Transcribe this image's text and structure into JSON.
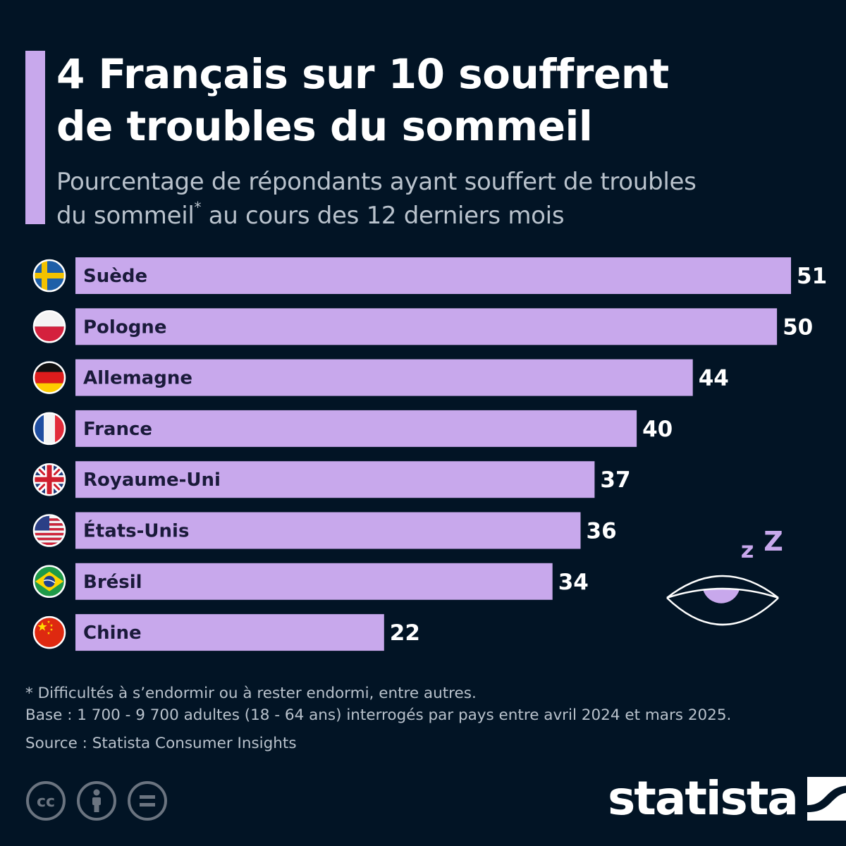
{
  "header": {
    "title_line1": "4 Français sur 10 souffrent",
    "title_line2": "de troubles du sommeil",
    "subtitle_line1": "Pourcentage de répondants ayant souffert de troubles",
    "subtitle_line2a": "du sommeil",
    "subtitle_mark": "*",
    "subtitle_line2b": " au cours des 12 derniers mois"
  },
  "chart_data": {
    "type": "bar",
    "orientation": "horizontal",
    "categories": [
      "Suède",
      "Pologne",
      "Allemagne",
      "France",
      "Royaume-Uni",
      "États-Unis",
      "Brésil",
      "Chine"
    ],
    "values": [
      51,
      50,
      44,
      40,
      37,
      36,
      34,
      22
    ],
    "flags": [
      "sweden-flag-icon",
      "poland-flag-icon",
      "germany-flag-icon",
      "france-flag-icon",
      "uk-flag-icon",
      "usa-flag-icon",
      "brazil-flag-icon",
      "china-flag-icon"
    ],
    "xlim": [
      0,
      51
    ],
    "bar_color": "#c8a8ec",
    "data_labels": true,
    "grid": false
  },
  "illustration": {
    "icon": "sleepy-eye-icon",
    "z_small": "z",
    "z_large": "Z"
  },
  "footer": {
    "note_line1": "* Difficultés à s’endormir ou à rester endormi, entre autres.",
    "note_line2": "Base : 1 700 - 9 700 adultes (18 - 64 ans) interrogés par pays entre avril 2024 et mars 2025.",
    "source": "Source : Statista Consumer Insights",
    "license_icons": [
      "cc-icon",
      "attribution-icon",
      "no-derivatives-icon"
    ],
    "brand": "statista"
  },
  "colors": {
    "background": "#021425",
    "accent": "#c8a8ec",
    "text": "#ffffff",
    "muted": "#b9c2cc",
    "bar_label": "#1a1a3a"
  }
}
